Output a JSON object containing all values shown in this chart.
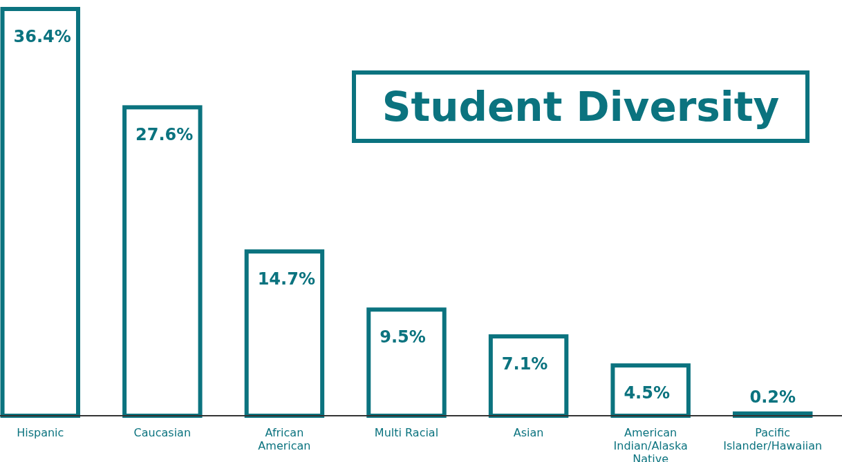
{
  "chart_data": {
    "type": "bar",
    "title": "Student Diversity",
    "categories": [
      "Hispanic",
      "Caucasian",
      "African American",
      "Multi Racial",
      "Asian",
      "American Indian/Alaska Native",
      "Pacific Islander/Hawaiian"
    ],
    "values": [
      36.4,
      27.6,
      14.7,
      9.5,
      7.1,
      4.5,
      0.2
    ],
    "value_labels": [
      "36.4%",
      "27.6%",
      "14.7%",
      "9.5%",
      "7.1%",
      "4.5%",
      "0.2%"
    ],
    "color": "#0b737f"
  }
}
